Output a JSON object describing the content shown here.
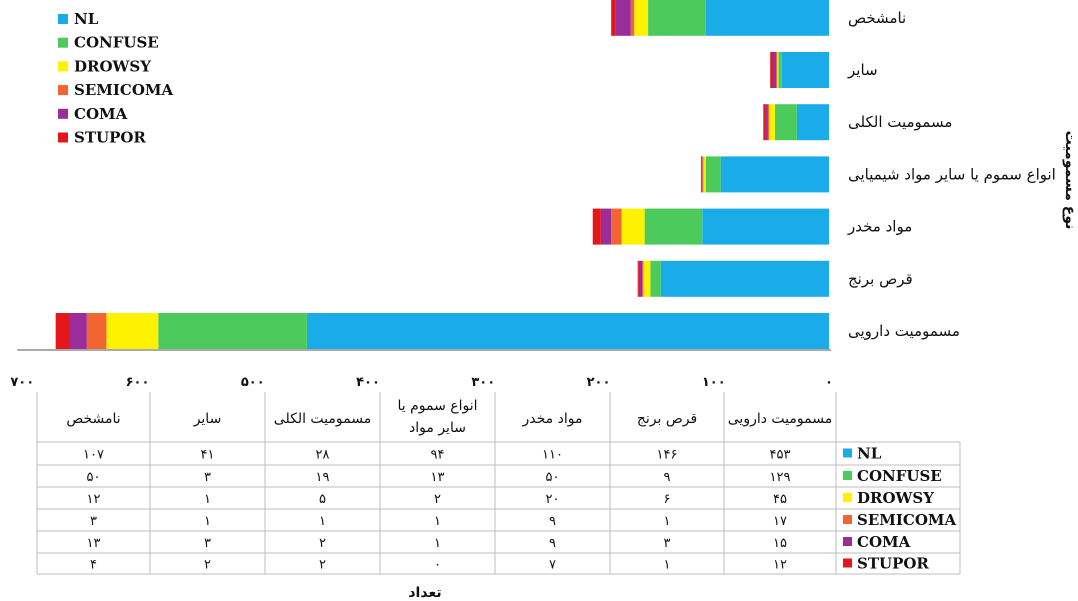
{
  "chart_data": {
    "type": "bar",
    "orientation": "horizontal-stacked",
    "direction": "right-to-left",
    "categories": [
      "مسمومیت دارویی",
      "قرص برنج",
      "مواد مخدر",
      "انواع سموم یا سایر مواد شیمیایی",
      "مسمومیت الکلی",
      "سایر",
      "نامشخص"
    ],
    "table_headers": [
      "مسمومیت دارویی",
      "قرص برنج",
      "مواد مخدر",
      "انواع سموم یا سایر مواد",
      "مسمومیت الکلی",
      "سایر",
      "نامشخص"
    ],
    "series": [
      {
        "name": "NL",
        "color": "#1AACE8",
        "values": [
          453,
          146,
          110,
          94,
          28,
          41,
          107
        ],
        "labels": [
          "۴۵۳",
          "۱۴۶",
          "۱۱۰",
          "۹۴",
          "۲۸",
          "۴۱",
          "۱۰۷"
        ]
      },
      {
        "name": "CONFUSE",
        "color": "#4CCB5C",
        "values": [
          129,
          9,
          50,
          13,
          19,
          3,
          50
        ],
        "labels": [
          "۱۲۹",
          "۹",
          "۵۰",
          "۱۳",
          "۱۹",
          "۳",
          "۵۰"
        ]
      },
      {
        "name": "DROWSY",
        "color": "#FFF200",
        "values": [
          45,
          6,
          20,
          2,
          5,
          1,
          12
        ],
        "labels": [
          "۴۵",
          "۶",
          "۲۰",
          "۲",
          "۵",
          "۱",
          "۱۲"
        ]
      },
      {
        "name": "SEMICOMA",
        "color": "#F26430",
        "values": [
          17,
          1,
          9,
          1,
          1,
          1,
          3
        ],
        "labels": [
          "۱۷",
          "۱",
          "۹",
          "۱",
          "۱",
          "۱",
          "۳"
        ]
      },
      {
        "name": "COMA",
        "color": "#9B2D9A",
        "values": [
          15,
          3,
          9,
          1,
          2,
          3,
          13
        ],
        "labels": [
          "۱۵",
          "۳",
          "۹",
          "۱",
          "۲",
          "۳",
          "۱۳"
        ]
      },
      {
        "name": "STUPOR",
        "color": "#E3161B",
        "values": [
          12,
          1,
          7,
          0,
          2,
          2,
          4
        ],
        "labels": [
          "۱۲",
          "۱",
          "۷",
          "۰",
          "۲",
          "۲",
          "۴"
        ]
      }
    ],
    "xlim": [
      0,
      700
    ],
    "xticks": [
      0,
      100,
      200,
      300,
      400,
      500,
      600,
      700
    ],
    "xtick_labels": [
      "۰",
      "۱۰۰",
      "۲۰۰",
      "۳۰۰",
      "۴۰۰",
      "۵۰۰",
      "۶۰۰",
      "۷۰۰"
    ],
    "xlabel": "تعداد",
    "ylabel": "نوع مسمومیت",
    "legend_position": "top-left",
    "grid": false,
    "data_table": true
  }
}
